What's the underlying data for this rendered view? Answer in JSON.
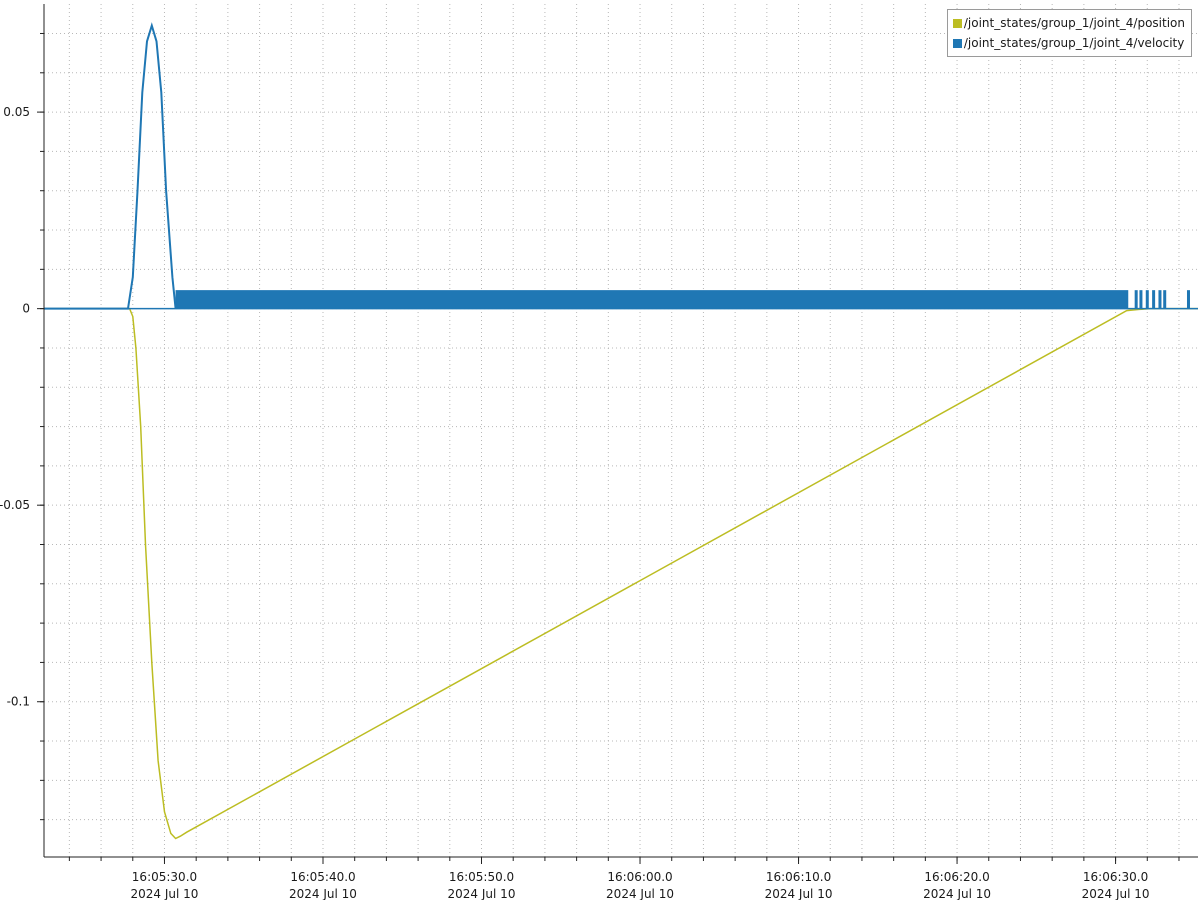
{
  "chart_data": {
    "type": "line",
    "title": "",
    "xlabel": "",
    "ylabel": "",
    "x_axis": {
      "ticks": [
        {
          "time": "16:05:30.0",
          "date": "2024 Jul 10"
        },
        {
          "time": "16:05:40.0",
          "date": "2024 Jul 10"
        },
        {
          "time": "16:05:50.0",
          "date": "2024 Jul 10"
        },
        {
          "time": "16:06:00.0",
          "date": "2024 Jul 10"
        },
        {
          "time": "16:06:10.0",
          "date": "2024 Jul 10"
        },
        {
          "time": "16:06:20.0",
          "date": "2024 Jul 10"
        },
        {
          "time": "16:06:30.0",
          "date": "2024 Jul 10"
        }
      ],
      "range": [
        "16:05:22.4",
        "16:06:35.2"
      ]
    },
    "y_axis": {
      "ticks": [
        {
          "value": 0.05,
          "label": "0.05"
        },
        {
          "value": 0,
          "label": "0"
        },
        {
          "value": -0.05,
          "label": "-0.05"
        },
        {
          "value": -0.1,
          "label": "-0.1"
        }
      ],
      "ylim": [
        -0.1395,
        0.0775
      ]
    },
    "grid": true,
    "legend_position": "top-right",
    "series": [
      {
        "name": "/joint_states/group_1/joint_4/position",
        "color": "#bcbd22",
        "points": [
          [
            "16:05:22.4",
            0
          ],
          [
            "16:05:27.8",
            0
          ],
          [
            "16:05:28.0",
            -0.002
          ],
          [
            "16:05:28.2",
            -0.01
          ],
          [
            "16:05:28.5",
            -0.03
          ],
          [
            "16:05:28.8",
            -0.06
          ],
          [
            "16:05:29.2",
            -0.09
          ],
          [
            "16:05:29.6",
            -0.115
          ],
          [
            "16:05:30.0",
            -0.128
          ],
          [
            "16:05:30.4",
            -0.1335
          ],
          [
            "16:05:30.7",
            -0.1348
          ],
          [
            "16:05:31.0",
            -0.1342
          ],
          [
            "16:05:31.4",
            -0.1332
          ],
          [
            "16:06:30.7",
            -0.0005
          ],
          [
            "16:06:31.5",
            -0.0002
          ],
          [
            "16:06:32.2",
            0
          ],
          [
            "16:06:35.2",
            0
          ]
        ]
      },
      {
        "name": "/joint_states/group_1/joint_4/velocity",
        "color": "#1f77b4",
        "points": [
          [
            "16:05:22.4",
            0
          ],
          [
            "16:05:27.7",
            0
          ],
          [
            "16:05:28.0",
            0.008
          ],
          [
            "16:05:28.3",
            0.03
          ],
          [
            "16:05:28.6",
            0.055
          ],
          [
            "16:05:28.9",
            0.068
          ],
          [
            "16:05:29.2",
            0.072
          ],
          [
            "16:05:29.5",
            0.068
          ],
          [
            "16:05:29.8",
            0.055
          ],
          [
            "16:05:30.1",
            0.03
          ],
          [
            "16:05:30.5",
            0.008
          ],
          [
            "16:05:30.7",
            0
          ]
        ],
        "noise_band": {
          "from": "16:05:30.7",
          "to": "16:06:30.8",
          "low": 0,
          "high": 0.0047
        },
        "sparse_spikes": {
          "times": [
            "16:06:31.3",
            "16:06:31.6",
            "16:06:32.0",
            "16:06:32.4",
            "16:06:32.8",
            "16:06:33.1",
            "16:06:34.6"
          ],
          "height": 0.0047
        }
      }
    ]
  }
}
